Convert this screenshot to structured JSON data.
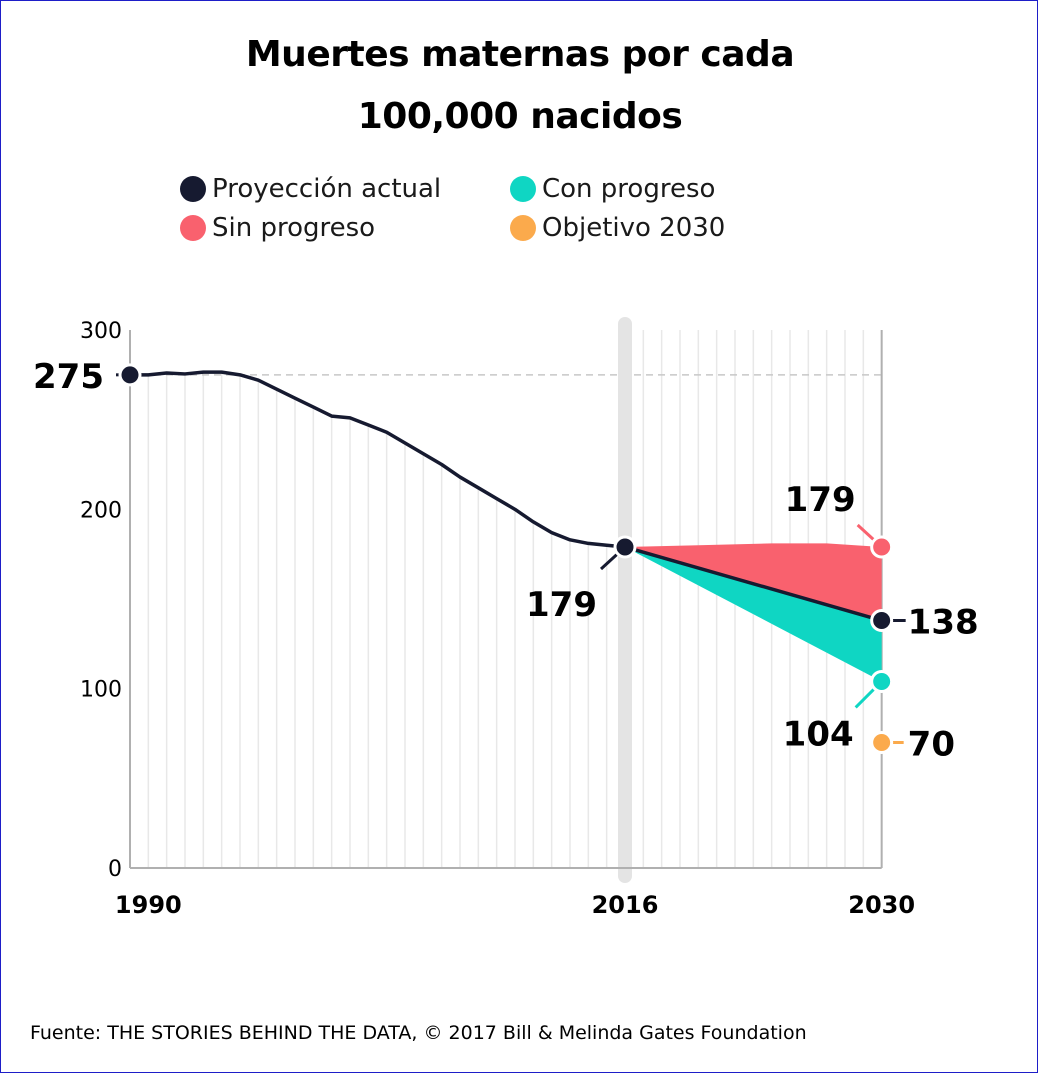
{
  "chart_data": {
    "type": "line",
    "title_line1": "Muertes maternas por cada",
    "title_line2": "100,000 nacidos",
    "ylim": [
      0,
      300
    ],
    "xlim": [
      1989,
      2031
    ],
    "yticks": [
      "0",
      "100",
      "200",
      "300"
    ],
    "xticks": [
      {
        "x": 1990,
        "label": "1990"
      },
      {
        "x": 2016,
        "label": "2016"
      },
      {
        "x": 2030,
        "label": "2030"
      }
    ],
    "legend": [
      {
        "label": "Proyección actual",
        "color": "#161a30"
      },
      {
        "label": "Con progreso",
        "color": "#0fd6c3"
      },
      {
        "label": "Sin progreso",
        "color": "#f9616e"
      },
      {
        "label": "Objetivo 2030",
        "color": "#fbaa4c"
      }
    ],
    "series": [
      {
        "name": "Proyección actual",
        "color": "#161a30",
        "points": [
          [
            1989,
            275
          ],
          [
            1990,
            275
          ],
          [
            1991,
            276
          ],
          [
            1992,
            275.5
          ],
          [
            1993,
            276.5
          ],
          [
            1994,
            276.5
          ],
          [
            1995,
            275
          ],
          [
            1996,
            272
          ],
          [
            1997,
            267
          ],
          [
            1998,
            262
          ],
          [
            1999,
            257
          ],
          [
            2000,
            252
          ],
          [
            2001,
            251
          ],
          [
            2002,
            247
          ],
          [
            2003,
            243
          ],
          [
            2004,
            237
          ],
          [
            2005,
            231
          ],
          [
            2006,
            225
          ],
          [
            2007,
            218
          ],
          [
            2008,
            212
          ],
          [
            2009,
            206
          ],
          [
            2010,
            200
          ],
          [
            2011,
            193
          ],
          [
            2012,
            187
          ],
          [
            2013,
            183
          ],
          [
            2014,
            181
          ],
          [
            2015,
            180
          ],
          [
            2016,
            179
          ]
        ],
        "projection": [
          [
            2016,
            179
          ],
          [
            2030,
            138
          ]
        ]
      },
      {
        "name": "Sin progreso",
        "color": "#f9616e",
        "points": [
          [
            2016,
            179
          ],
          [
            2020,
            180
          ],
          [
            2024,
            181
          ],
          [
            2027,
            181
          ],
          [
            2030,
            179
          ]
        ]
      },
      {
        "name": "Con progreso",
        "color": "#0fd6c3",
        "points": [
          [
            2016,
            179
          ],
          [
            2030,
            104
          ]
        ]
      },
      {
        "name": "Objetivo 2030",
        "color": "#fbaa4c",
        "points": [
          [
            2030,
            70
          ]
        ]
      }
    ],
    "labels": {
      "start": "275",
      "mid": "179",
      "sin_progreso": "179",
      "actual_2030": "138",
      "con_progreso": "104",
      "objetivo": "70"
    }
  },
  "source": "Fuente: THE STORIES BEHIND THE DATA, © 2017 Bill & Melinda Gates Foundation"
}
